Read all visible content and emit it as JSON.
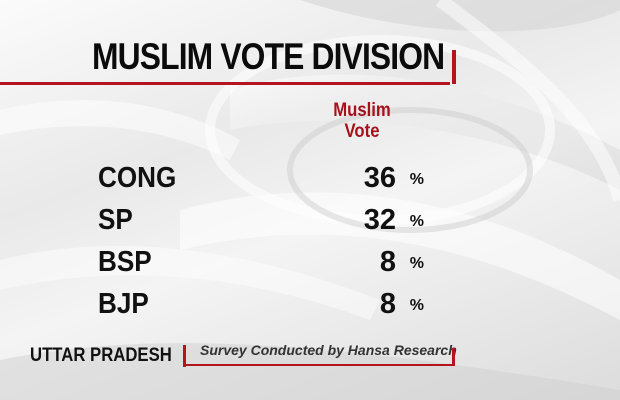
{
  "chart_data": {
    "type": "table",
    "title": "MUSLIM VOTE DIVISION",
    "column_header": [
      "Muslim",
      "Vote"
    ],
    "rows": [
      {
        "party": "CONG",
        "value": 36
      },
      {
        "party": "SP",
        "value": 32
      },
      {
        "party": "BSP",
        "value": 8
      },
      {
        "party": "BJP",
        "value": 8
      }
    ],
    "unit": "%"
  },
  "footer": {
    "region": "UTTAR PRADESH",
    "source": "Survey Conducted by Hansa Research"
  },
  "colors": {
    "accent": "#b3141d",
    "text": "#111111"
  }
}
